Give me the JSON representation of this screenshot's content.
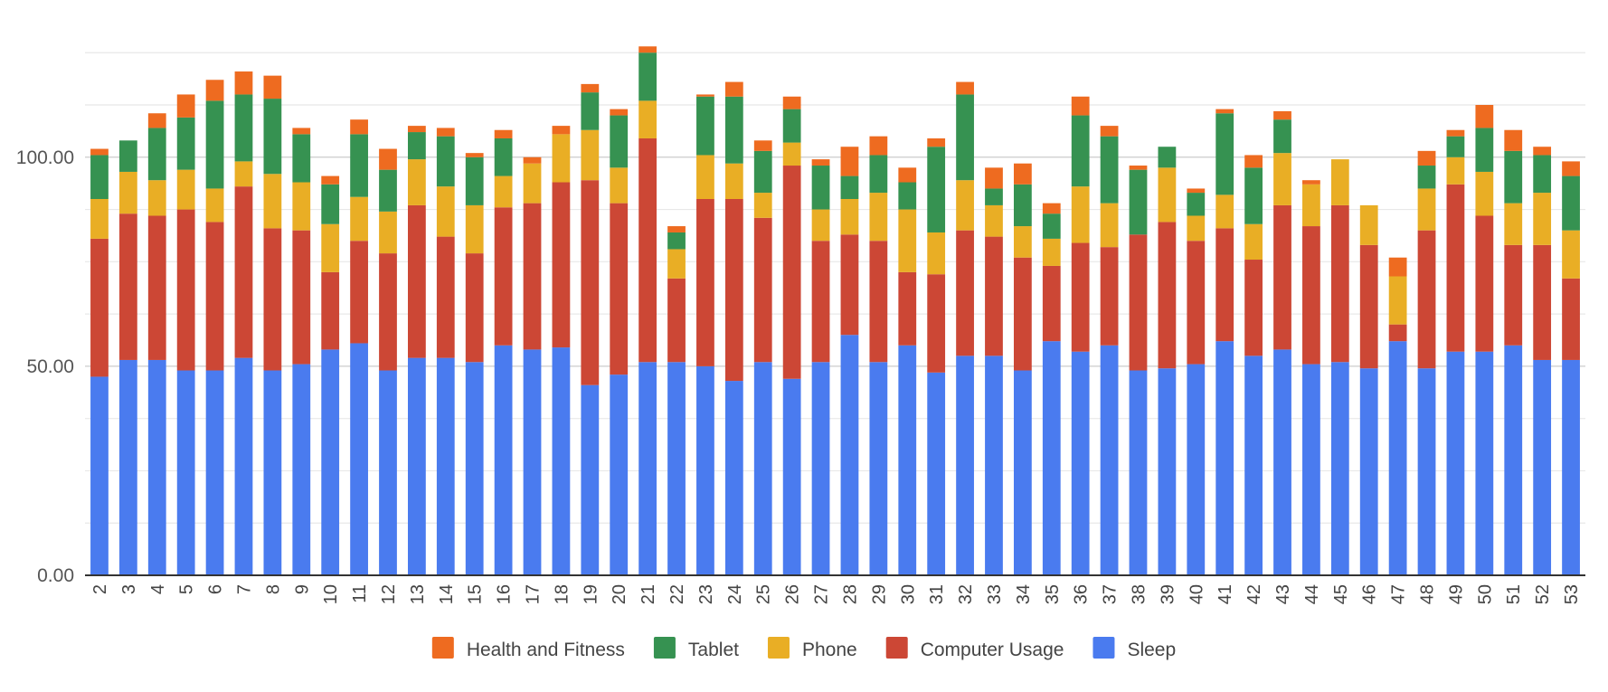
{
  "chart_data": {
    "type": "bar",
    "stacked": true,
    "title": "",
    "xlabel": "",
    "ylabel": "",
    "categories": [
      "2",
      "3",
      "4",
      "5",
      "6",
      "7",
      "8",
      "9",
      "10",
      "11",
      "12",
      "13",
      "14",
      "15",
      "16",
      "17",
      "18",
      "19",
      "20",
      "21",
      "22",
      "23",
      "24",
      "25",
      "26",
      "27",
      "28",
      "29",
      "30",
      "31",
      "32",
      "33",
      "34",
      "35",
      "36",
      "37",
      "38",
      "39",
      "40",
      "41",
      "42",
      "43",
      "44",
      "45",
      "46",
      "47",
      "48",
      "49",
      "50",
      "51",
      "52",
      "53"
    ],
    "ylim": [
      0,
      135
    ],
    "yticks": [
      0,
      50,
      100
    ],
    "ytick_labels": [
      "0.00",
      "50.00",
      "100.00"
    ],
    "grid": true,
    "legend_position": "bottom",
    "legend_order": [
      "Health and Fitness",
      "Tablet",
      "Phone",
      "Computer Usage",
      "Sleep"
    ],
    "series": [
      {
        "name": "Sleep",
        "color": "#4a7bef",
        "values": [
          47.5,
          51.5,
          51.5,
          49,
          49,
          52,
          49,
          50.5,
          54,
          55.5,
          49,
          52,
          52,
          51,
          55,
          54,
          54.5,
          45.5,
          48,
          51,
          51,
          50,
          46.5,
          51,
          47,
          51,
          57.5,
          51,
          55,
          48.5,
          52.5,
          52.5,
          49,
          56,
          53.5,
          55,
          49,
          49.5,
          50.5,
          56,
          52.5,
          54,
          50.5,
          51,
          49.5,
          56,
          49.5,
          53.5,
          53.5,
          55,
          51.5,
          51.5
        ]
      },
      {
        "name": "Computer Usage",
        "color": "#cc4735",
        "values": [
          33,
          35,
          34.5,
          38.5,
          35.5,
          41,
          34,
          32,
          18.5,
          24.5,
          28,
          36.5,
          29,
          26,
          33,
          35,
          39.5,
          49,
          41,
          53.5,
          20,
          40,
          43.5,
          34.5,
          51,
          29,
          24,
          29,
          17.5,
          23.5,
          30,
          28.5,
          27,
          18,
          26,
          23.5,
          32.5,
          35,
          29.5,
          27,
          23,
          34.5,
          33,
          37.5,
          29.5,
          4,
          33,
          40,
          32.5,
          24,
          27.5,
          19.5
        ]
      },
      {
        "name": "Phone",
        "color": "#e9ae25",
        "values": [
          9.5,
          10,
          8.5,
          9.5,
          8,
          6,
          13,
          11.5,
          11.5,
          10.5,
          10,
          11,
          12,
          11.5,
          7.5,
          9.5,
          11.5,
          12,
          8.5,
          9,
          7,
          10.5,
          8.5,
          6,
          5.5,
          7.5,
          8.5,
          11.5,
          15,
          10,
          12,
          7.5,
          7.5,
          6.5,
          13.5,
          10.5,
          0,
          13,
          6,
          8,
          8.5,
          12.5,
          10,
          11,
          9.5,
          11.5,
          10,
          6.5,
          10.5,
          10,
          12.5,
          11.5
        ]
      },
      {
        "name": "Tablet",
        "color": "#369251",
        "values": [
          10.5,
          7.5,
          12.5,
          12.5,
          21,
          16,
          18,
          11.5,
          9.5,
          15,
          10,
          6.5,
          12,
          11.5,
          9,
          0,
          0,
          9,
          12.5,
          11.5,
          4,
          14,
          16,
          10,
          8,
          10.5,
          5.5,
          9,
          6.5,
          20.5,
          20.5,
          4,
          10,
          6,
          17,
          16,
          15.5,
          5,
          5.5,
          19.5,
          13.5,
          8,
          0,
          0,
          0,
          0,
          5.5,
          5,
          10.5,
          12.5,
          9,
          13
        ]
      },
      {
        "name": "Health and Fitness",
        "color": "#ee6b20",
        "values": [
          1.5,
          0,
          3.5,
          5.5,
          5,
          5.5,
          5.5,
          1.5,
          2,
          3.5,
          5,
          1.5,
          2,
          1,
          2,
          1.5,
          2,
          2,
          1.5,
          1.5,
          1.5,
          0.5,
          3.5,
          2.5,
          3,
          1.5,
          7,
          4.5,
          3.5,
          2,
          3,
          5,
          5,
          2.5,
          4.5,
          2.5,
          1,
          0,
          1,
          1,
          3,
          2,
          1,
          0,
          0,
          4.5,
          3.5,
          1.5,
          5.5,
          5,
          2,
          3.5
        ]
      }
    ]
  }
}
